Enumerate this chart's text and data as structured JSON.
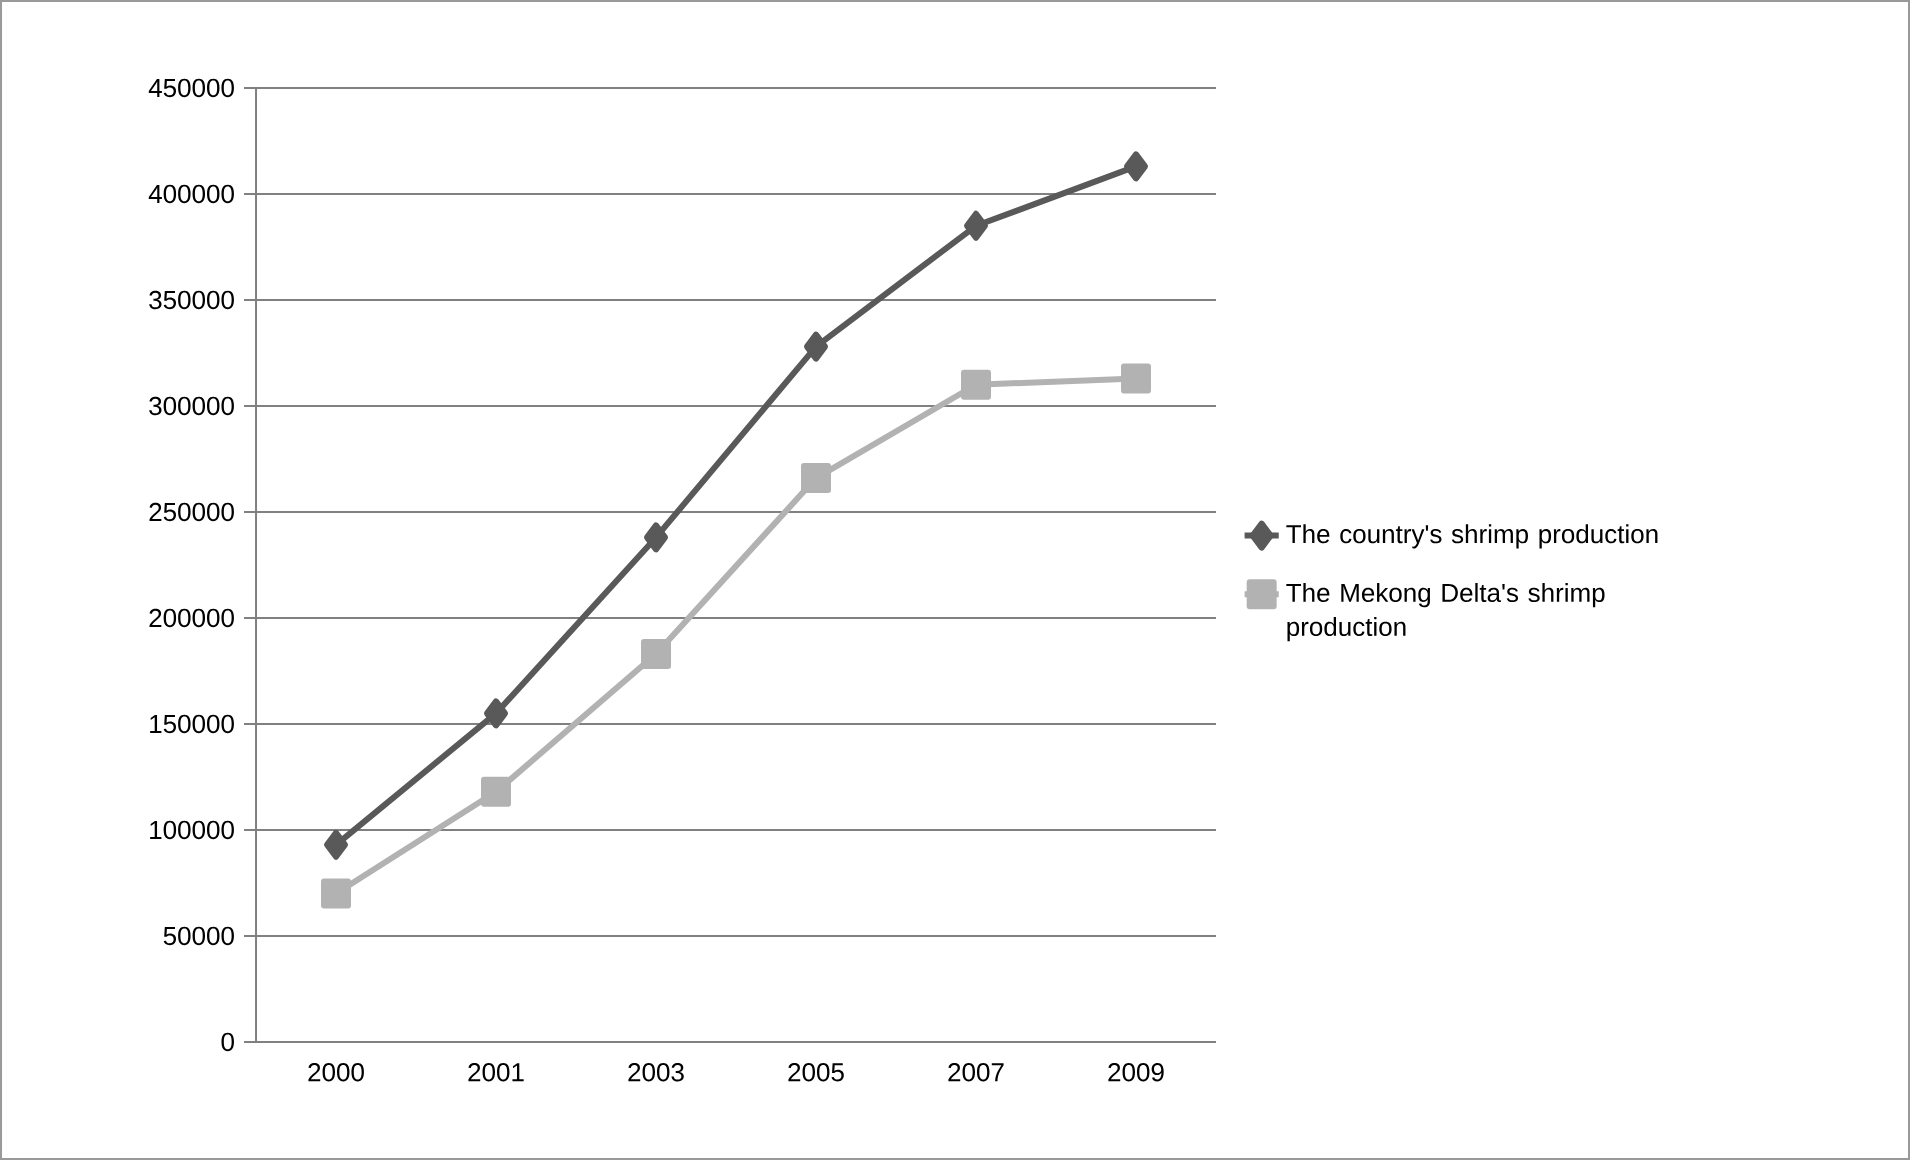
{
  "chart_data": {
    "type": "line",
    "categories": [
      "2000",
      "2001",
      "2003",
      "2005",
      "2007",
      "2009"
    ],
    "series": [
      {
        "name": "The country's shrimp production",
        "color": "#595959",
        "marker": "diamond",
        "values": [
          93000,
          155000,
          238000,
          328000,
          385000,
          413000
        ]
      },
      {
        "name": "The Mekong Delta's shrimp production",
        "color": "#b2b2b2",
        "marker": "square",
        "values": [
          70000,
          118000,
          183000,
          266000,
          310000,
          313000
        ]
      }
    ],
    "ylim": [
      0,
      450000
    ],
    "yticks": [
      0,
      50000,
      100000,
      150000,
      200000,
      250000,
      300000,
      350000,
      400000,
      450000
    ],
    "grid": "y",
    "legend": "right",
    "line_style": "solid"
  }
}
